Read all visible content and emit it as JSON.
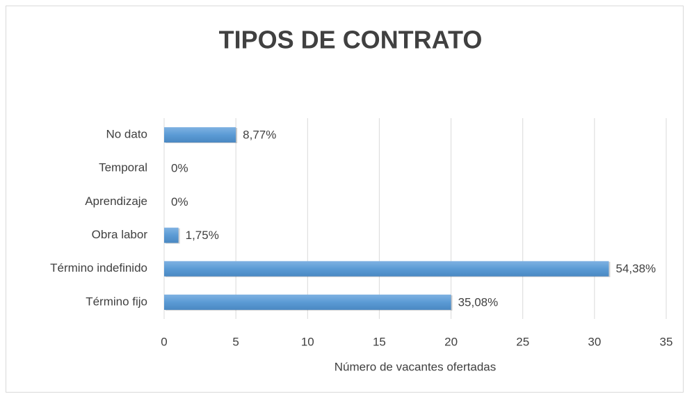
{
  "chart_data": {
    "type": "bar",
    "orientation": "horizontal",
    "title": "TIPOS DE CONTRATO",
    "x_label": "Número de vacantes ofertadas",
    "categories": [
      "Término fijo",
      "Término indefinido",
      "Obra labor",
      "Aprendizaje",
      "Temporal",
      "No dato"
    ],
    "values": [
      20,
      31,
      1,
      0,
      0,
      5
    ],
    "value_labels": [
      "35,08%",
      "54,38%",
      "1,75%",
      "0%",
      "0%",
      "8,77%"
    ],
    "color": "#5b9bd5",
    "xlim": [
      0,
      35
    ],
    "xticks": [
      0,
      5,
      10,
      15,
      20,
      25,
      30,
      35
    ],
    "grid": true
  }
}
